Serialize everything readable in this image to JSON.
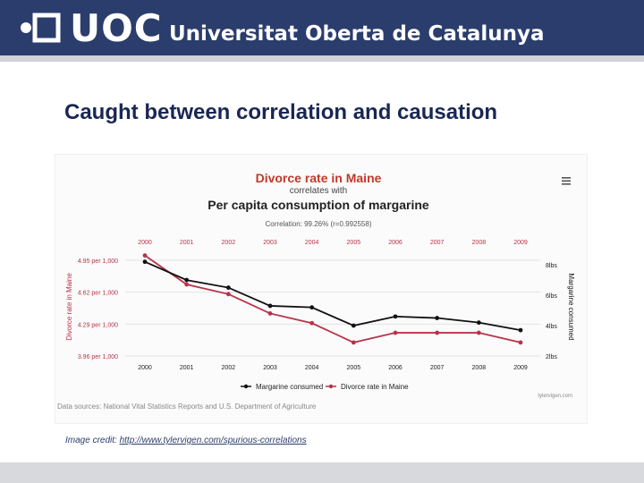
{
  "header": {
    "brand": "UOC",
    "brand_full": "Universitat Oberta de Catalunya"
  },
  "slide": {
    "title": "Caught between correlation and causation",
    "credit_prefix": "Image credit: ",
    "credit_link": "http://www.tylervigen.com/spurious-correlations"
  },
  "colors": {
    "banner": "#2b3d6c",
    "series_margarine": "#111111",
    "series_divorce": "#b8324a",
    "title_red": "#c0392b"
  },
  "chart_data": {
    "type": "line",
    "title": "Divorce rate in Maine",
    "subtitle": "correlates with",
    "title2": "Per capita consumption of margarine",
    "correlation": "Correlation: 99.26% (r=0.992558)",
    "x": [
      "2000",
      "2001",
      "2002",
      "2003",
      "2004",
      "2005",
      "2006",
      "2007",
      "2008",
      "2009"
    ],
    "ylabel": "Divorce rate in Maine",
    "ylabel_right": "Margarine consumed",
    "left_ticks": [
      "4.95 per 1,000",
      "4.62 per 1,000",
      "4.29 per 1,000",
      "3.96 per 1,000"
    ],
    "left_tick_values": [
      4.95,
      4.62,
      4.29,
      3.96
    ],
    "right_ticks": [
      "8lbs",
      "6lbs",
      "4lbs",
      "2lbs"
    ],
    "right_tick_values": [
      8,
      6,
      4,
      2
    ],
    "ylim_left": [
      3.96,
      4.95
    ],
    "ylim_right": [
      2,
      8.3
    ],
    "series": [
      {
        "name": "Margarine consumed",
        "axis": "right",
        "values": [
          8.2,
          7.0,
          6.5,
          5.3,
          5.2,
          4.0,
          4.6,
          4.5,
          4.2,
          3.7
        ]
      },
      {
        "name": "Divorce rate in Maine",
        "axis": "left",
        "values": [
          5.0,
          4.7,
          4.6,
          4.4,
          4.3,
          4.1,
          4.2,
          4.2,
          4.2,
          4.1
        ]
      }
    ],
    "source": "Data sources: National Vital Statistics Reports and U.S. Department of Agriculture",
    "watermark": "tylervigen.com",
    "legend_position": "bottom"
  }
}
